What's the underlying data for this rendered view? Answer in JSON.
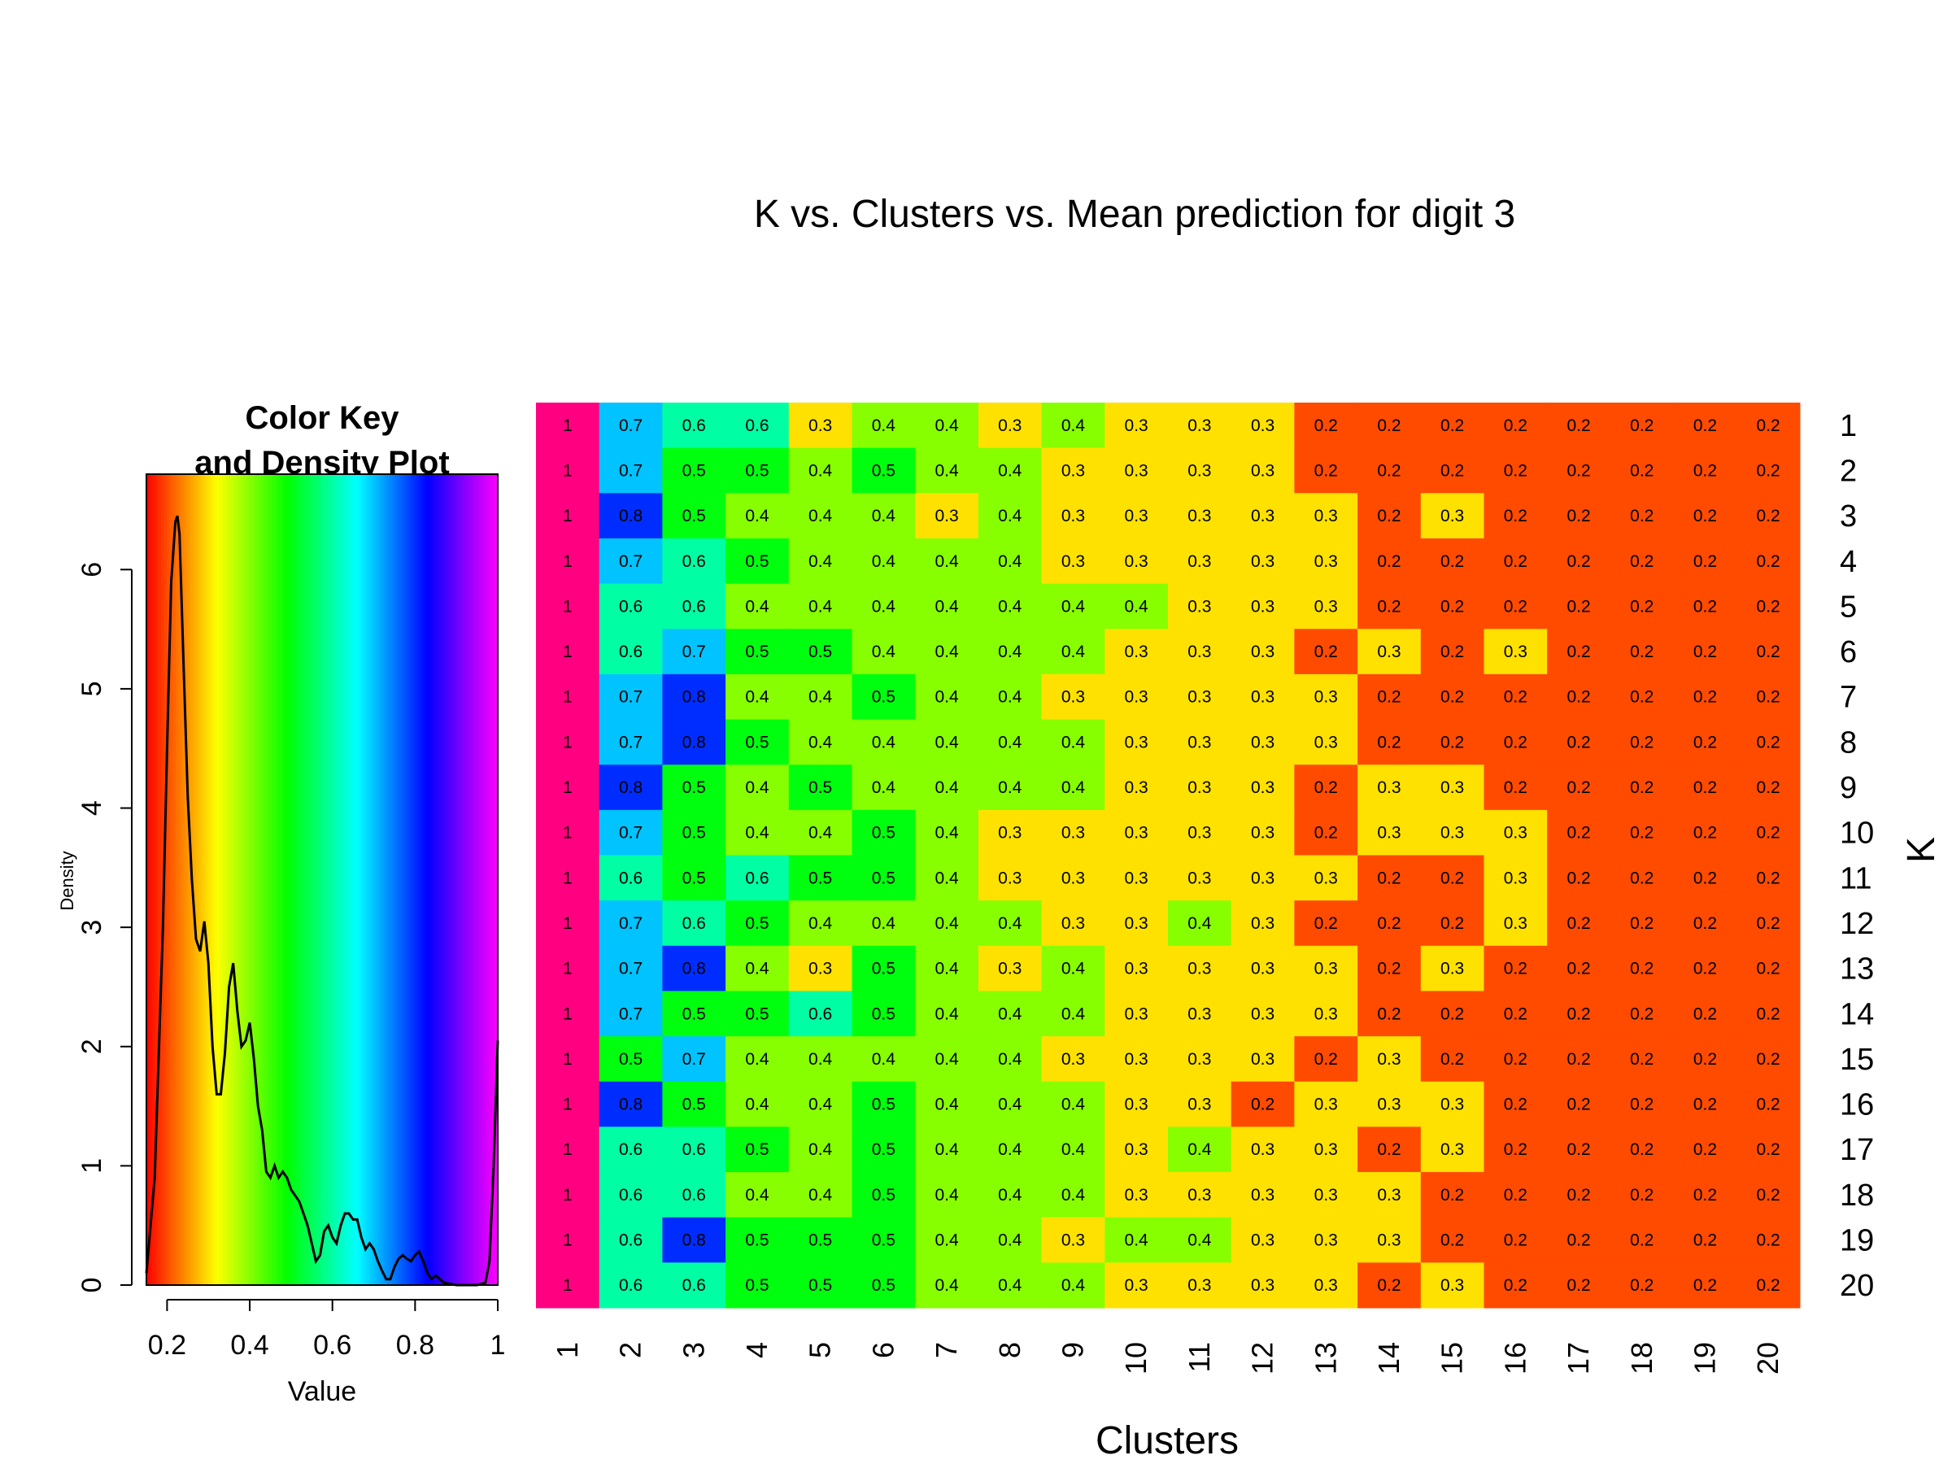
{
  "chart_data": [
    {
      "type": "heatmap",
      "title": "K vs. Clusters vs. Mean prediction for digit 3",
      "xlabel": "Clusters",
      "ylabel": "K",
      "x_categories": [
        "1",
        "2",
        "3",
        "4",
        "5",
        "6",
        "7",
        "8",
        "9",
        "10",
        "11",
        "12",
        "13",
        "14",
        "15",
        "16",
        "17",
        "18",
        "19",
        "20"
      ],
      "y_categories": [
        "1",
        "2",
        "3",
        "4",
        "5",
        "6",
        "7",
        "8",
        "9",
        "10",
        "11",
        "12",
        "13",
        "14",
        "15",
        "16",
        "17",
        "18",
        "19",
        "20"
      ],
      "values": [
        [
          1,
          0.7,
          0.6,
          0.6,
          0.3,
          0.4,
          0.4,
          0.3,
          0.4,
          0.3,
          0.3,
          0.3,
          0.2,
          0.2,
          0.2,
          0.2,
          0.2,
          0.2,
          0.2,
          0.2
        ],
        [
          1,
          0.7,
          0.5,
          0.5,
          0.4,
          0.5,
          0.4,
          0.4,
          0.3,
          0.3,
          0.3,
          0.3,
          0.2,
          0.2,
          0.2,
          0.2,
          0.2,
          0.2,
          0.2,
          0.2
        ],
        [
          1,
          0.8,
          0.5,
          0.4,
          0.4,
          0.4,
          0.3,
          0.4,
          0.3,
          0.3,
          0.3,
          0.3,
          0.3,
          0.2,
          0.3,
          0.2,
          0.2,
          0.2,
          0.2,
          0.2
        ],
        [
          1,
          0.7,
          0.6,
          0.5,
          0.4,
          0.4,
          0.4,
          0.4,
          0.3,
          0.3,
          0.3,
          0.3,
          0.3,
          0.2,
          0.2,
          0.2,
          0.2,
          0.2,
          0.2,
          0.2
        ],
        [
          1,
          0.6,
          0.6,
          0.4,
          0.4,
          0.4,
          0.4,
          0.4,
          0.4,
          0.4,
          0.3,
          0.3,
          0.3,
          0.2,
          0.2,
          0.2,
          0.2,
          0.2,
          0.2,
          0.2
        ],
        [
          1,
          0.6,
          0.7,
          0.5,
          0.5,
          0.4,
          0.4,
          0.4,
          0.4,
          0.3,
          0.3,
          0.3,
          0.2,
          0.3,
          0.2,
          0.3,
          0.2,
          0.2,
          0.2,
          0.2
        ],
        [
          1,
          0.7,
          0.8,
          0.4,
          0.4,
          0.5,
          0.4,
          0.4,
          0.3,
          0.3,
          0.3,
          0.3,
          0.3,
          0.2,
          0.2,
          0.2,
          0.2,
          0.2,
          0.2,
          0.2
        ],
        [
          1,
          0.7,
          0.8,
          0.5,
          0.4,
          0.4,
          0.4,
          0.4,
          0.4,
          0.3,
          0.3,
          0.3,
          0.3,
          0.2,
          0.2,
          0.2,
          0.2,
          0.2,
          0.2,
          0.2
        ],
        [
          1,
          0.8,
          0.5,
          0.4,
          0.5,
          0.4,
          0.4,
          0.4,
          0.4,
          0.3,
          0.3,
          0.3,
          0.2,
          0.3,
          0.3,
          0.2,
          0.2,
          0.2,
          0.2,
          0.2
        ],
        [
          1,
          0.7,
          0.5,
          0.4,
          0.4,
          0.5,
          0.4,
          0.3,
          0.3,
          0.3,
          0.3,
          0.3,
          0.2,
          0.3,
          0.3,
          0.3,
          0.2,
          0.2,
          0.2,
          0.2
        ],
        [
          1,
          0.6,
          0.5,
          0.6,
          0.5,
          0.5,
          0.4,
          0.3,
          0.3,
          0.3,
          0.3,
          0.3,
          0.3,
          0.2,
          0.2,
          0.3,
          0.2,
          0.2,
          0.2,
          0.2
        ],
        [
          1,
          0.7,
          0.6,
          0.5,
          0.4,
          0.4,
          0.4,
          0.4,
          0.3,
          0.3,
          0.4,
          0.3,
          0.2,
          0.2,
          0.2,
          0.3,
          0.2,
          0.2,
          0.2,
          0.2
        ],
        [
          1,
          0.7,
          0.8,
          0.4,
          0.3,
          0.5,
          0.4,
          0.3,
          0.4,
          0.3,
          0.3,
          0.3,
          0.3,
          0.2,
          0.3,
          0.2,
          0.2,
          0.2,
          0.2,
          0.2
        ],
        [
          1,
          0.7,
          0.5,
          0.5,
          0.6,
          0.5,
          0.4,
          0.4,
          0.4,
          0.3,
          0.3,
          0.3,
          0.3,
          0.2,
          0.2,
          0.2,
          0.2,
          0.2,
          0.2,
          0.2
        ],
        [
          1,
          0.5,
          0.7,
          0.4,
          0.4,
          0.4,
          0.4,
          0.4,
          0.3,
          0.3,
          0.3,
          0.3,
          0.2,
          0.3,
          0.2,
          0.2,
          0.2,
          0.2,
          0.2,
          0.2
        ],
        [
          1,
          0.8,
          0.5,
          0.4,
          0.4,
          0.5,
          0.4,
          0.4,
          0.4,
          0.3,
          0.3,
          0.2,
          0.3,
          0.3,
          0.3,
          0.2,
          0.2,
          0.2,
          0.2,
          0.2
        ],
        [
          1,
          0.6,
          0.6,
          0.5,
          0.4,
          0.5,
          0.4,
          0.4,
          0.4,
          0.3,
          0.4,
          0.3,
          0.3,
          0.2,
          0.3,
          0.2,
          0.2,
          0.2,
          0.2,
          0.2
        ],
        [
          1,
          0.6,
          0.6,
          0.4,
          0.4,
          0.5,
          0.4,
          0.4,
          0.4,
          0.3,
          0.3,
          0.3,
          0.3,
          0.3,
          0.2,
          0.2,
          0.2,
          0.2,
          0.2,
          0.2
        ],
        [
          1,
          0.6,
          0.8,
          0.5,
          0.5,
          0.5,
          0.4,
          0.4,
          0.3,
          0.4,
          0.4,
          0.3,
          0.3,
          0.3,
          0.2,
          0.2,
          0.2,
          0.2,
          0.2,
          0.2
        ],
        [
          1,
          0.6,
          0.6,
          0.5,
          0.5,
          0.5,
          0.4,
          0.4,
          0.4,
          0.3,
          0.3,
          0.3,
          0.3,
          0.2,
          0.3,
          0.2,
          0.2,
          0.2,
          0.2,
          0.2
        ]
      ],
      "color_scale": "rainbow (red = low, magenta = high)",
      "value_range": [
        0.15,
        1.0
      ]
    },
    {
      "type": "line",
      "title": "Color Key\nand Density Plot",
      "xlabel": "Value",
      "ylabel": "Density",
      "xlim": [
        0.15,
        1.0
      ],
      "ylim": [
        0,
        6.8
      ],
      "x_ticks": [
        "0.2",
        "0.4",
        "0.6",
        "0.8",
        "1"
      ],
      "y_ticks": [
        "0",
        "1",
        "2",
        "3",
        "4",
        "5",
        "6"
      ],
      "series": [
        {
          "x": [
            0.15,
            0.17,
            0.19,
            0.2,
            0.21,
            0.22,
            0.225,
            0.23,
            0.24,
            0.25,
            0.26,
            0.27,
            0.28,
            0.29,
            0.3,
            0.31,
            0.32,
            0.33,
            0.34,
            0.35,
            0.36,
            0.37,
            0.38,
            0.39,
            0.4,
            0.41,
            0.42,
            0.43,
            0.44,
            0.45,
            0.46,
            0.47,
            0.48,
            0.49,
            0.5,
            0.51,
            0.52,
            0.53,
            0.54,
            0.55,
            0.56,
            0.57,
            0.58,
            0.59,
            0.6,
            0.61,
            0.62,
            0.63,
            0.64,
            0.65,
            0.66,
            0.67,
            0.68,
            0.69,
            0.7,
            0.71,
            0.72,
            0.73,
            0.74,
            0.75,
            0.76,
            0.77,
            0.78,
            0.79,
            0.8,
            0.81,
            0.82,
            0.83,
            0.84,
            0.85,
            0.86,
            0.87,
            0.9,
            0.95,
            0.97,
            0.98,
            0.99,
            1.0
          ],
          "y": [
            0.1,
            0.9,
            3.0,
            4.5,
            5.9,
            6.4,
            6.45,
            6.3,
            5.2,
            4.1,
            3.4,
            2.9,
            2.8,
            3.05,
            2.7,
            2.0,
            1.6,
            1.6,
            1.95,
            2.5,
            2.7,
            2.3,
            2.0,
            2.05,
            2.2,
            1.9,
            1.5,
            1.3,
            0.95,
            0.9,
            1.0,
            0.9,
            0.95,
            0.9,
            0.8,
            0.75,
            0.7,
            0.6,
            0.5,
            0.35,
            0.2,
            0.25,
            0.45,
            0.5,
            0.4,
            0.35,
            0.5,
            0.6,
            0.6,
            0.55,
            0.55,
            0.4,
            0.3,
            0.35,
            0.3,
            0.2,
            0.12,
            0.05,
            0.05,
            0.15,
            0.22,
            0.25,
            0.22,
            0.2,
            0.25,
            0.28,
            0.2,
            0.1,
            0.05,
            0.08,
            0.05,
            0.02,
            0.0,
            0.0,
            0.02,
            0.2,
            1.0,
            2.05
          ]
        }
      ]
    }
  ]
}
